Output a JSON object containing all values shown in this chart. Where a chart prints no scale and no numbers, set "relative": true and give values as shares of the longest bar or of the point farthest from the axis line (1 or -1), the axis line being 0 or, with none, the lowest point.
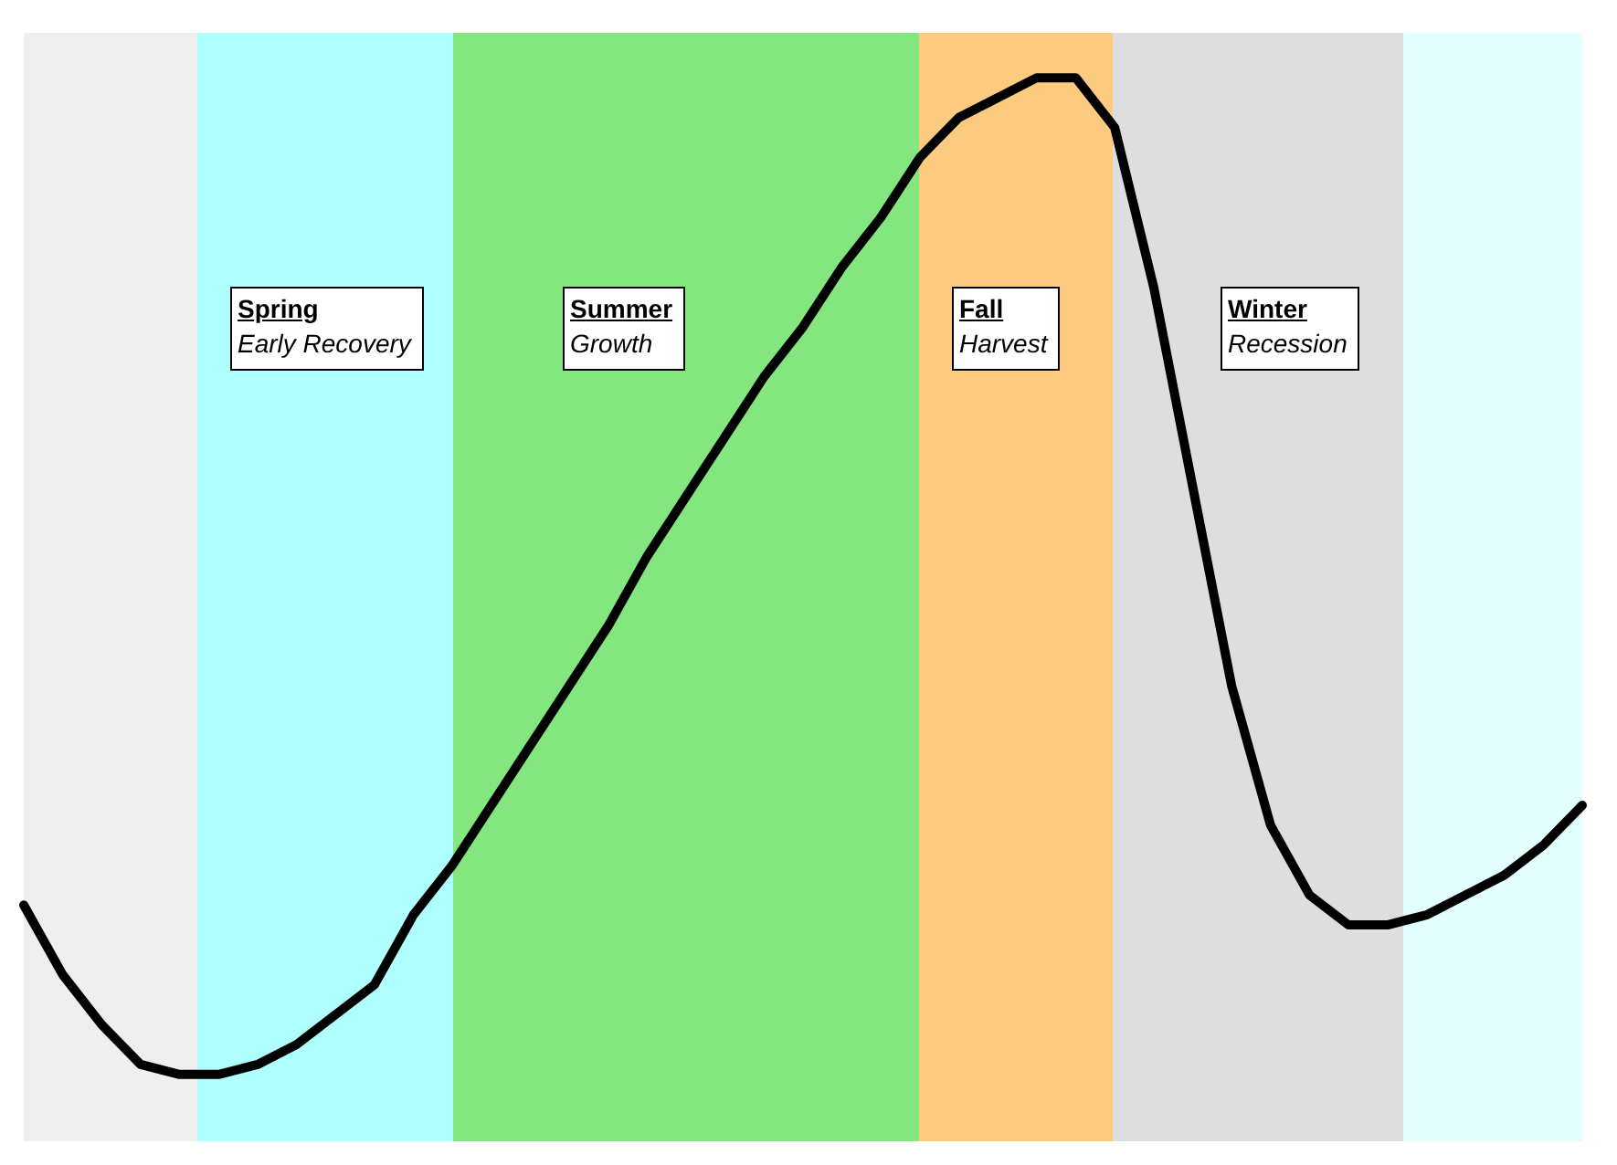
{
  "chart_data": {
    "type": "line",
    "relative": true,
    "tick_labels": false,
    "line_style": "solid",
    "categories": [
      null,
      null,
      null,
      null,
      null,
      null,
      null,
      null,
      null,
      null,
      null,
      null,
      null,
      null,
      null,
      null,
      null,
      null,
      null,
      null,
      null,
      null,
      null,
      null,
      null,
      null,
      null,
      null,
      null,
      null,
      null,
      null,
      null,
      null,
      null,
      null,
      null,
      null,
      null,
      null,
      null
    ],
    "series": [
      {
        "color": "#000000",
        "values": [
          0.17,
          0.1,
          0.05,
          0.01,
          0,
          0,
          0.01,
          0.03,
          0.06,
          0.09,
          0.16,
          0.21,
          0.27,
          0.33,
          0.39,
          0.45,
          0.52,
          0.58,
          0.64,
          0.7,
          0.75,
          0.81,
          0.86,
          0.92,
          0.96,
          0.98,
          1,
          1,
          0.95,
          0.79,
          0.59,
          0.39,
          0.25,
          0.18,
          0.15,
          0.15,
          0.16,
          0.18,
          0.2,
          0.23,
          0.27
        ]
      }
    ],
    "annotations": [
      "Spring\nEarly Recovery",
      "Summer\nGrowth",
      "Fall\nHarvest",
      "Winter\nRecession"
    ]
  }
}
